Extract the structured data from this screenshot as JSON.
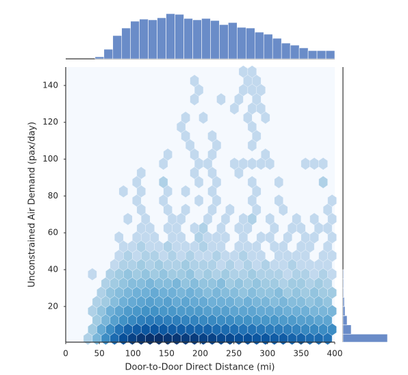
{
  "chart_data": {
    "type": "hexbin",
    "xlabel": "Door-to-Door Direct Distance (mi)",
    "ylabel": "Unconstrained Air Demand (pax/day)",
    "xlim": [
      0,
      400
    ],
    "xticks": [
      0,
      50,
      100,
      150,
      200,
      250,
      300,
      350,
      400
    ],
    "ylim": [
      0,
      150
    ],
    "yticks": [
      20,
      40,
      60,
      80,
      100,
      120,
      140
    ],
    "color": "#6a8cc8",
    "colormap": [
      "#dfeaf6",
      "#c6dbef",
      "#9ecae1",
      "#6baed6",
      "#4292c6",
      "#2171b5",
      "#08519c",
      "#08306b"
    ],
    "hex_dx": 13.2,
    "hex_rows": [
      {
        "y": 2.5,
        "x0": 33,
        "counts": [
          2,
          6,
          14,
          22,
          30,
          34,
          38,
          40,
          40,
          38,
          38,
          36,
          36,
          34,
          34,
          32,
          32,
          30,
          30,
          28,
          28,
          26,
          26,
          24,
          24,
          22,
          22,
          20
        ]
      },
      {
        "y": 7.5,
        "x0": 39.6,
        "counts": [
          3,
          8,
          14,
          20,
          24,
          26,
          28,
          28,
          27,
          26,
          26,
          25,
          24,
          24,
          22,
          22,
          21,
          20,
          20,
          19,
          18,
          18,
          17,
          16,
          15,
          15,
          14,
          14
        ]
      },
      {
        "y": 12.5,
        "x0": 46.2,
        "counts": [
          3,
          6,
          10,
          13,
          15,
          17,
          18,
          18,
          17,
          17,
          16,
          16,
          15,
          15,
          14,
          14,
          13,
          13,
          12,
          12,
          12,
          11,
          11,
          10,
          10,
          9,
          9
        ]
      },
      {
        "y": 17.5,
        "x0": 39.6,
        "counts": [
          2,
          4,
          7,
          9,
          11,
          12,
          13,
          13,
          12,
          12,
          11,
          11,
          11,
          10,
          10,
          10,
          9,
          9,
          9,
          8,
          8,
          8,
          7,
          7,
          7,
          6,
          6,
          6
        ]
      },
      {
        "y": 22.5,
        "x0": 46.2,
        "counts": [
          2,
          3,
          5,
          7,
          8,
          9,
          10,
          9,
          10,
          8,
          9,
          8,
          8,
          7,
          7,
          7,
          6,
          7,
          6,
          6,
          5,
          6,
          5,
          5,
          4,
          5,
          4
        ]
      },
      {
        "y": 27.5,
        "x0": 52.8,
        "counts": [
          2,
          4,
          5,
          6,
          7,
          7,
          8,
          7,
          7,
          6,
          7,
          6,
          5,
          6,
          5,
          5,
          4,
          5,
          4,
          4,
          5,
          3,
          4,
          3,
          4,
          3,
          3
        ]
      },
      {
        "y": 32.5,
        "x0": 59.4,
        "counts": [
          2,
          3,
          4,
          5,
          5,
          6,
          5,
          5,
          6,
          4,
          5,
          4,
          4,
          5,
          3,
          4,
          3,
          4,
          3,
          3,
          2,
          3,
          3,
          2,
          3,
          2
        ]
      },
      {
        "y": 37.5,
        "x0": 39.6,
        "counts": [
          1,
          null,
          2,
          3,
          4,
          3,
          4,
          3,
          4,
          3,
          3,
          4,
          2,
          3,
          2,
          3,
          2,
          2,
          3,
          2,
          2,
          2,
          1,
          2,
          2,
          1,
          2,
          1
        ]
      },
      {
        "y": 42.5,
        "x0": 72.6,
        "counts": [
          1,
          2,
          2,
          3,
          2,
          3,
          2,
          2,
          3,
          2,
          2,
          2,
          1,
          2,
          1,
          2,
          1,
          2,
          1,
          1,
          2,
          1,
          1,
          1,
          1
        ]
      },
      {
        "y": 47.5,
        "x0": 79.2,
        "counts": [
          1,
          2,
          1,
          2,
          2,
          1,
          2,
          1,
          2,
          1,
          1,
          2,
          1,
          1,
          2,
          1,
          1,
          null,
          1,
          1,
          1,
          1,
          null,
          1,
          1
        ]
      },
      {
        "y": 52.5,
        "x0": 85.8,
        "counts": [
          1,
          1,
          2,
          1,
          1,
          2,
          1,
          1,
          1,
          2,
          1,
          1,
          null,
          1,
          1,
          1,
          null,
          1,
          1,
          null,
          1,
          1,
          null,
          1
        ]
      },
      {
        "y": 57.5,
        "x0": 79.2,
        "counts": [
          1,
          null,
          1,
          1,
          1,
          null,
          1,
          1,
          null,
          2,
          1,
          1,
          1,
          null,
          1,
          null,
          1,
          1,
          null,
          1,
          null,
          1,
          1,
          null,
          1
        ]
      },
      {
        "y": 62.5,
        "x0": 112.2,
        "counts": [
          1,
          1,
          null,
          1,
          1,
          null,
          1,
          2,
          null,
          1,
          null,
          1,
          1,
          null,
          null,
          1,
          null,
          1,
          1,
          null,
          1,
          1
        ]
      },
      {
        "y": 67.5,
        "x0": 92.4,
        "counts": [
          1,
          null,
          1,
          null,
          null,
          1,
          1,
          null,
          null,
          1,
          null,
          1,
          null,
          1,
          2,
          null,
          1,
          null,
          null,
          1,
          null,
          1,
          null,
          1
        ]
      },
      {
        "y": 72.5,
        "x0": 112.2,
        "counts": [
          1,
          null,
          null,
          1,
          null,
          1,
          null,
          null,
          1,
          null,
          1,
          null,
          null,
          1,
          null,
          null,
          1,
          null,
          null,
          null,
          null,
          1
        ]
      },
      {
        "y": 77.5,
        "x0": 105.6,
        "counts": [
          1,
          null,
          null,
          1,
          null,
          null,
          null,
          1,
          null,
          1,
          null,
          null,
          null,
          1,
          null,
          null,
          1,
          null,
          null,
          null,
          null,
          null,
          1
        ]
      },
      {
        "y": 82.5,
        "x0": 85.8,
        "counts": [
          1,
          null,
          1,
          null,
          null,
          1,
          null,
          1,
          null,
          null,
          1,
          null,
          null,
          null,
          null,
          1
        ]
      },
      {
        "y": 87.5,
        "x0": 105.6,
        "counts": [
          1,
          null,
          null,
          2,
          null,
          null,
          null,
          1,
          null,
          1,
          null,
          null,
          null,
          1,
          null,
          null,
          1,
          null,
          null,
          null,
          null,
          2
        ]
      },
      {
        "y": 92.5,
        "x0": 112.2,
        "counts": [
          1,
          null,
          null,
          null,
          null,
          null,
          1,
          null,
          1,
          null,
          null,
          1
        ]
      },
      {
        "y": 97.5,
        "x0": 145.2,
        "counts": [
          1,
          null,
          null,
          null,
          1,
          1,
          null,
          null,
          1,
          1,
          1,
          1,
          1,
          null,
          null,
          null,
          1,
          1,
          1
        ]
      },
      {
        "y": 102.5,
        "x0": 151.8,
        "counts": [
          1,
          null,
          null,
          1,
          null,
          1,
          null,
          null,
          null,
          null,
          null,
          1
        ]
      },
      {
        "y": 107.5,
        "x0": 184.8,
        "counts": [
          1,
          null,
          null,
          1,
          null,
          null,
          null,
          1
        ]
      },
      {
        "y": 112.5,
        "x0": 178.2,
        "counts": [
          1,
          null,
          null,
          1,
          null,
          null,
          null,
          null,
          1
        ]
      },
      {
        "y": 117.5,
        "x0": 171.6,
        "counts": [
          1,
          null,
          null,
          null,
          null,
          null,
          null,
          null,
          1
        ]
      },
      {
        "y": 122.5,
        "x0": 178.2,
        "counts": [
          1,
          null,
          1,
          null,
          null,
          null,
          null,
          1,
          null,
          1
        ]
      },
      {
        "y": 127.5,
        "x0": 250.8,
        "counts": [
          1,
          null,
          1,
          1
        ]
      },
      {
        "y": 132.5,
        "x0": 191.4,
        "counts": [
          1,
          null,
          null,
          1,
          null,
          1,
          null,
          1
        ]
      },
      {
        "y": 137.5,
        "x0": 198,
        "counts": [
          1,
          null,
          null,
          null,
          null,
          1,
          1,
          1
        ]
      },
      {
        "y": 142.5,
        "x0": 191.4,
        "counts": [
          1,
          null,
          null,
          null,
          null,
          null,
          1,
          1
        ]
      },
      {
        "y": 147.5,
        "x0": 264,
        "counts": [
          1,
          1
        ]
      }
    ],
    "x_hist": {
      "bins": [
        43.6,
        56.8,
        70.0,
        83.2,
        96.4,
        109.6,
        122.8,
        136.0,
        149.2,
        162.4,
        175.6,
        188.8,
        202.0,
        215.2,
        228.4,
        241.6,
        254.8,
        268.0,
        281.2,
        294.4,
        307.6,
        320.8,
        334.0,
        347.2,
        360.4,
        373.6,
        386.8,
        400.0
      ],
      "counts": [
        3,
        14,
        34,
        45,
        55,
        58,
        57,
        60,
        66,
        65,
        59,
        57,
        59,
        56,
        50,
        53,
        46,
        45,
        39,
        36,
        30,
        23,
        20,
        16,
        12,
        12,
        12
      ]
    },
    "y_hist": {
      "bins": [
        0,
        5,
        10,
        15,
        20,
        25,
        30,
        35,
        40
      ],
      "counts": [
        65,
        12,
        6,
        3,
        2,
        1,
        1,
        1
      ]
    }
  }
}
